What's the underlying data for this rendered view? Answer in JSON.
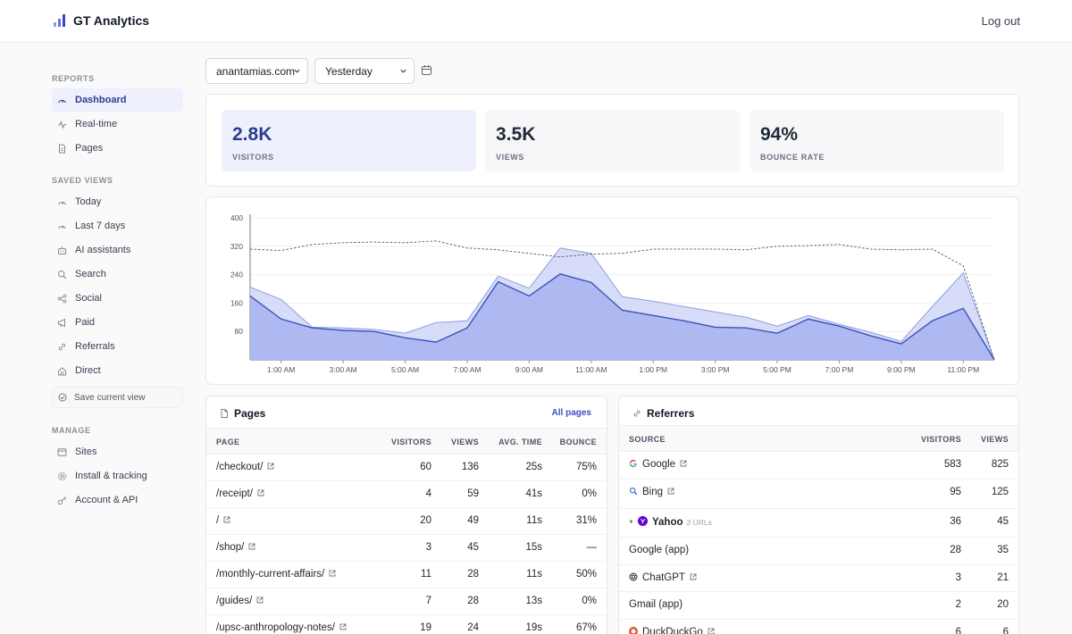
{
  "app": {
    "name": "GT Analytics",
    "logout_label": "Log out"
  },
  "sidebar": {
    "reports_heading": "REPORTS",
    "reports": [
      {
        "label": "Dashboard",
        "icon": "gauge-icon",
        "active": true
      },
      {
        "label": "Real-time",
        "icon": "pulse-icon",
        "active": false
      },
      {
        "label": "Pages",
        "icon": "document-icon",
        "active": false
      }
    ],
    "saved_heading": "SAVED VIEWS",
    "saved": [
      {
        "label": "Today",
        "icon": "gauge-icon"
      },
      {
        "label": "Last 7 days",
        "icon": "gauge-icon"
      },
      {
        "label": "AI assistants",
        "icon": "bot-icon"
      },
      {
        "label": "Search",
        "icon": "search-icon"
      },
      {
        "label": "Social",
        "icon": "share-icon"
      },
      {
        "label": "Paid",
        "icon": "megaphone-icon"
      },
      {
        "label": "Referrals",
        "icon": "link-icon"
      },
      {
        "label": "Direct",
        "icon": "home-icon"
      }
    ],
    "save_view_label": "Save current view",
    "manage_heading": "MANAGE",
    "manage": [
      {
        "label": "Sites",
        "icon": "window-icon"
      },
      {
        "label": "Install & tracking",
        "icon": "gear-icon"
      },
      {
        "label": "Account & API",
        "icon": "key-icon"
      }
    ]
  },
  "controls": {
    "site": "anantamias.com",
    "period": "Yesterday"
  },
  "stats": [
    {
      "value": "2.8K",
      "label": "VISITORS",
      "active": true
    },
    {
      "value": "3.5K",
      "label": "VIEWS",
      "active": false
    },
    {
      "value": "94%",
      "label": "BOUNCE RATE",
      "active": false
    }
  ],
  "chart_data": {
    "type": "area",
    "x": [
      "12:00 AM",
      "1:00 AM",
      "2:00 AM",
      "3:00 AM",
      "4:00 AM",
      "5:00 AM",
      "6:00 AM",
      "7:00 AM",
      "8:00 AM",
      "9:00 AM",
      "10:00 AM",
      "11:00 AM",
      "12:00 PM",
      "1:00 PM",
      "2:00 PM",
      "3:00 PM",
      "4:00 PM",
      "5:00 PM",
      "6:00 PM",
      "7:00 PM",
      "8:00 PM",
      "9:00 PM",
      "10:00 PM",
      "11:00 PM",
      "12:00 AM"
    ],
    "xticks": [
      "1:00 AM",
      "3:00 AM",
      "5:00 AM",
      "7:00 AM",
      "9:00 AM",
      "11:00 AM",
      "1:00 PM",
      "3:00 PM",
      "5:00 PM",
      "7:00 PM",
      "9:00 PM",
      "11:00 PM"
    ],
    "yticks": [
      80,
      160,
      240,
      320,
      400
    ],
    "ylim": [
      0,
      400
    ],
    "series": [
      {
        "values": [
          205,
          170,
          92,
          90,
          86,
          75,
          105,
          110,
          236,
          202,
          315,
          300,
          178,
          165,
          150,
          135,
          120,
          95,
          125,
          100,
          78,
          52,
          150,
          245,
          0
        ],
        "color": "#c9d2f7"
      },
      {
        "values": [
          180,
          115,
          90,
          83,
          80,
          62,
          50,
          90,
          220,
          180,
          242,
          218,
          140,
          125,
          110,
          92,
          90,
          75,
          115,
          95,
          68,
          45,
          110,
          145,
          0
        ],
        "color": "#a7b3f0"
      },
      {
        "values": [
          312,
          308,
          325,
          330,
          332,
          330,
          335,
          315,
          310,
          300,
          290,
          298,
          300,
          312,
          312,
          312,
          310,
          320,
          322,
          325,
          312,
          310,
          312,
          265,
          0
        ],
        "color": "#555555",
        "dashed": true
      }
    ]
  },
  "pages_table": {
    "title": "Pages",
    "link": "All pages",
    "columns": [
      "PAGE",
      "VISITORS",
      "VIEWS",
      "AVG. TIME",
      "BOUNCE"
    ],
    "rows": [
      {
        "page": "/checkout/",
        "visitors": "60",
        "views": "136",
        "avg_time": "25s",
        "bounce": "75%"
      },
      {
        "page": "/receipt/",
        "visitors": "4",
        "views": "59",
        "avg_time": "41s",
        "bounce": "0%"
      },
      {
        "page": "/",
        "visitors": "20",
        "views": "49",
        "avg_time": "11s",
        "bounce": "31%"
      },
      {
        "page": "/shop/",
        "visitors": "3",
        "views": "45",
        "avg_time": "15s",
        "bounce": "—"
      },
      {
        "page": "/monthly-current-affairs/",
        "visitors": "11",
        "views": "28",
        "avg_time": "11s",
        "bounce": "50%"
      },
      {
        "page": "/guides/",
        "visitors": "7",
        "views": "28",
        "avg_time": "13s",
        "bounce": "0%"
      },
      {
        "page": "/upsc-anthropology-notes/",
        "visitors": "19",
        "views": "24",
        "avg_time": "19s",
        "bounce": "67%"
      }
    ]
  },
  "referrers_table": {
    "title": "Referrers",
    "columns": [
      "SOURCE",
      "VISITORS",
      "VIEWS"
    ],
    "rows": [
      {
        "source": "Google",
        "icon": "google-icon",
        "visitors": "583",
        "views": "825",
        "ext": true
      },
      {
        "source": "Bing",
        "icon": "bing-icon",
        "visitors": "95",
        "views": "125",
        "ext": true
      },
      {
        "source": "Yahoo",
        "icon": "yahoo-icon",
        "sub": "3 URLs",
        "visitors": "36",
        "views": "45",
        "expand": true
      },
      {
        "source": "Google (app)",
        "visitors": "28",
        "views": "35"
      },
      {
        "source": "ChatGPT",
        "icon": "chatgpt-icon",
        "visitors": "3",
        "views": "21",
        "ext": true
      },
      {
        "source": "Gmail (app)",
        "visitors": "2",
        "views": "20"
      },
      {
        "source": "DuckDuckGo",
        "icon": "duckduckgo-icon",
        "visitors": "6",
        "views": "6",
        "ext": true
      }
    ]
  }
}
